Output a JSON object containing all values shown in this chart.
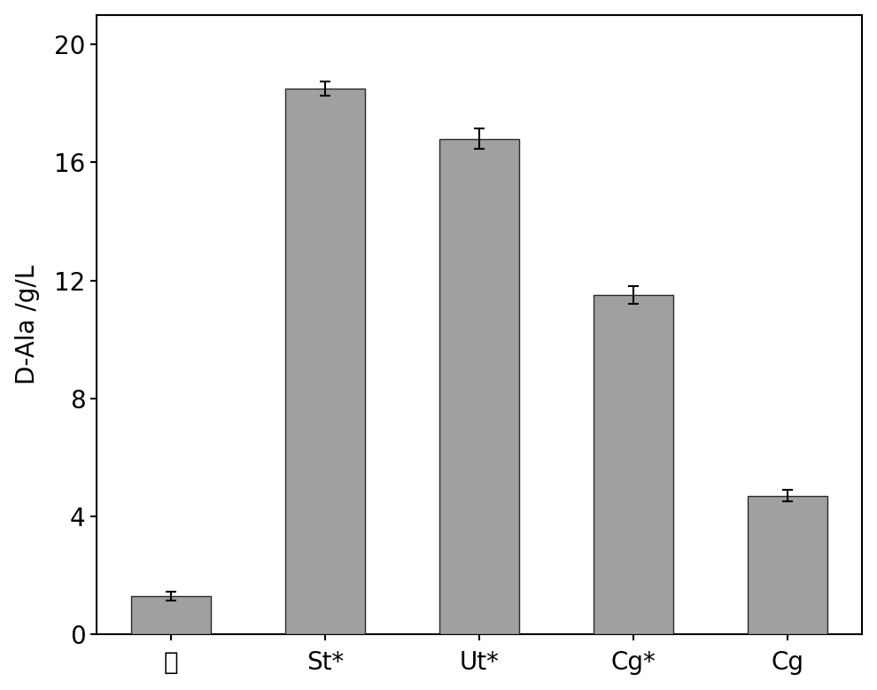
{
  "categories": [
    "空",
    "St*",
    "Ut*",
    "Cg*",
    "Cg"
  ],
  "values": [
    1.3,
    18.5,
    16.8,
    11.5,
    4.7
  ],
  "errors": [
    0.15,
    0.25,
    0.35,
    0.3,
    0.2
  ],
  "bar_color": "#a0a0a0",
  "bar_edgecolor": "#2a2a2a",
  "ylabel": "D-Ala /g/L",
  "ylim": [
    0,
    21
  ],
  "yticks": [
    0,
    4,
    8,
    12,
    16,
    20
  ],
  "bar_width": 0.52,
  "background_color": "#ffffff",
  "error_capsize": 4,
  "error_linewidth": 1.5,
  "error_color": "black",
  "tick_fontsize": 20,
  "ylabel_fontsize": 20
}
